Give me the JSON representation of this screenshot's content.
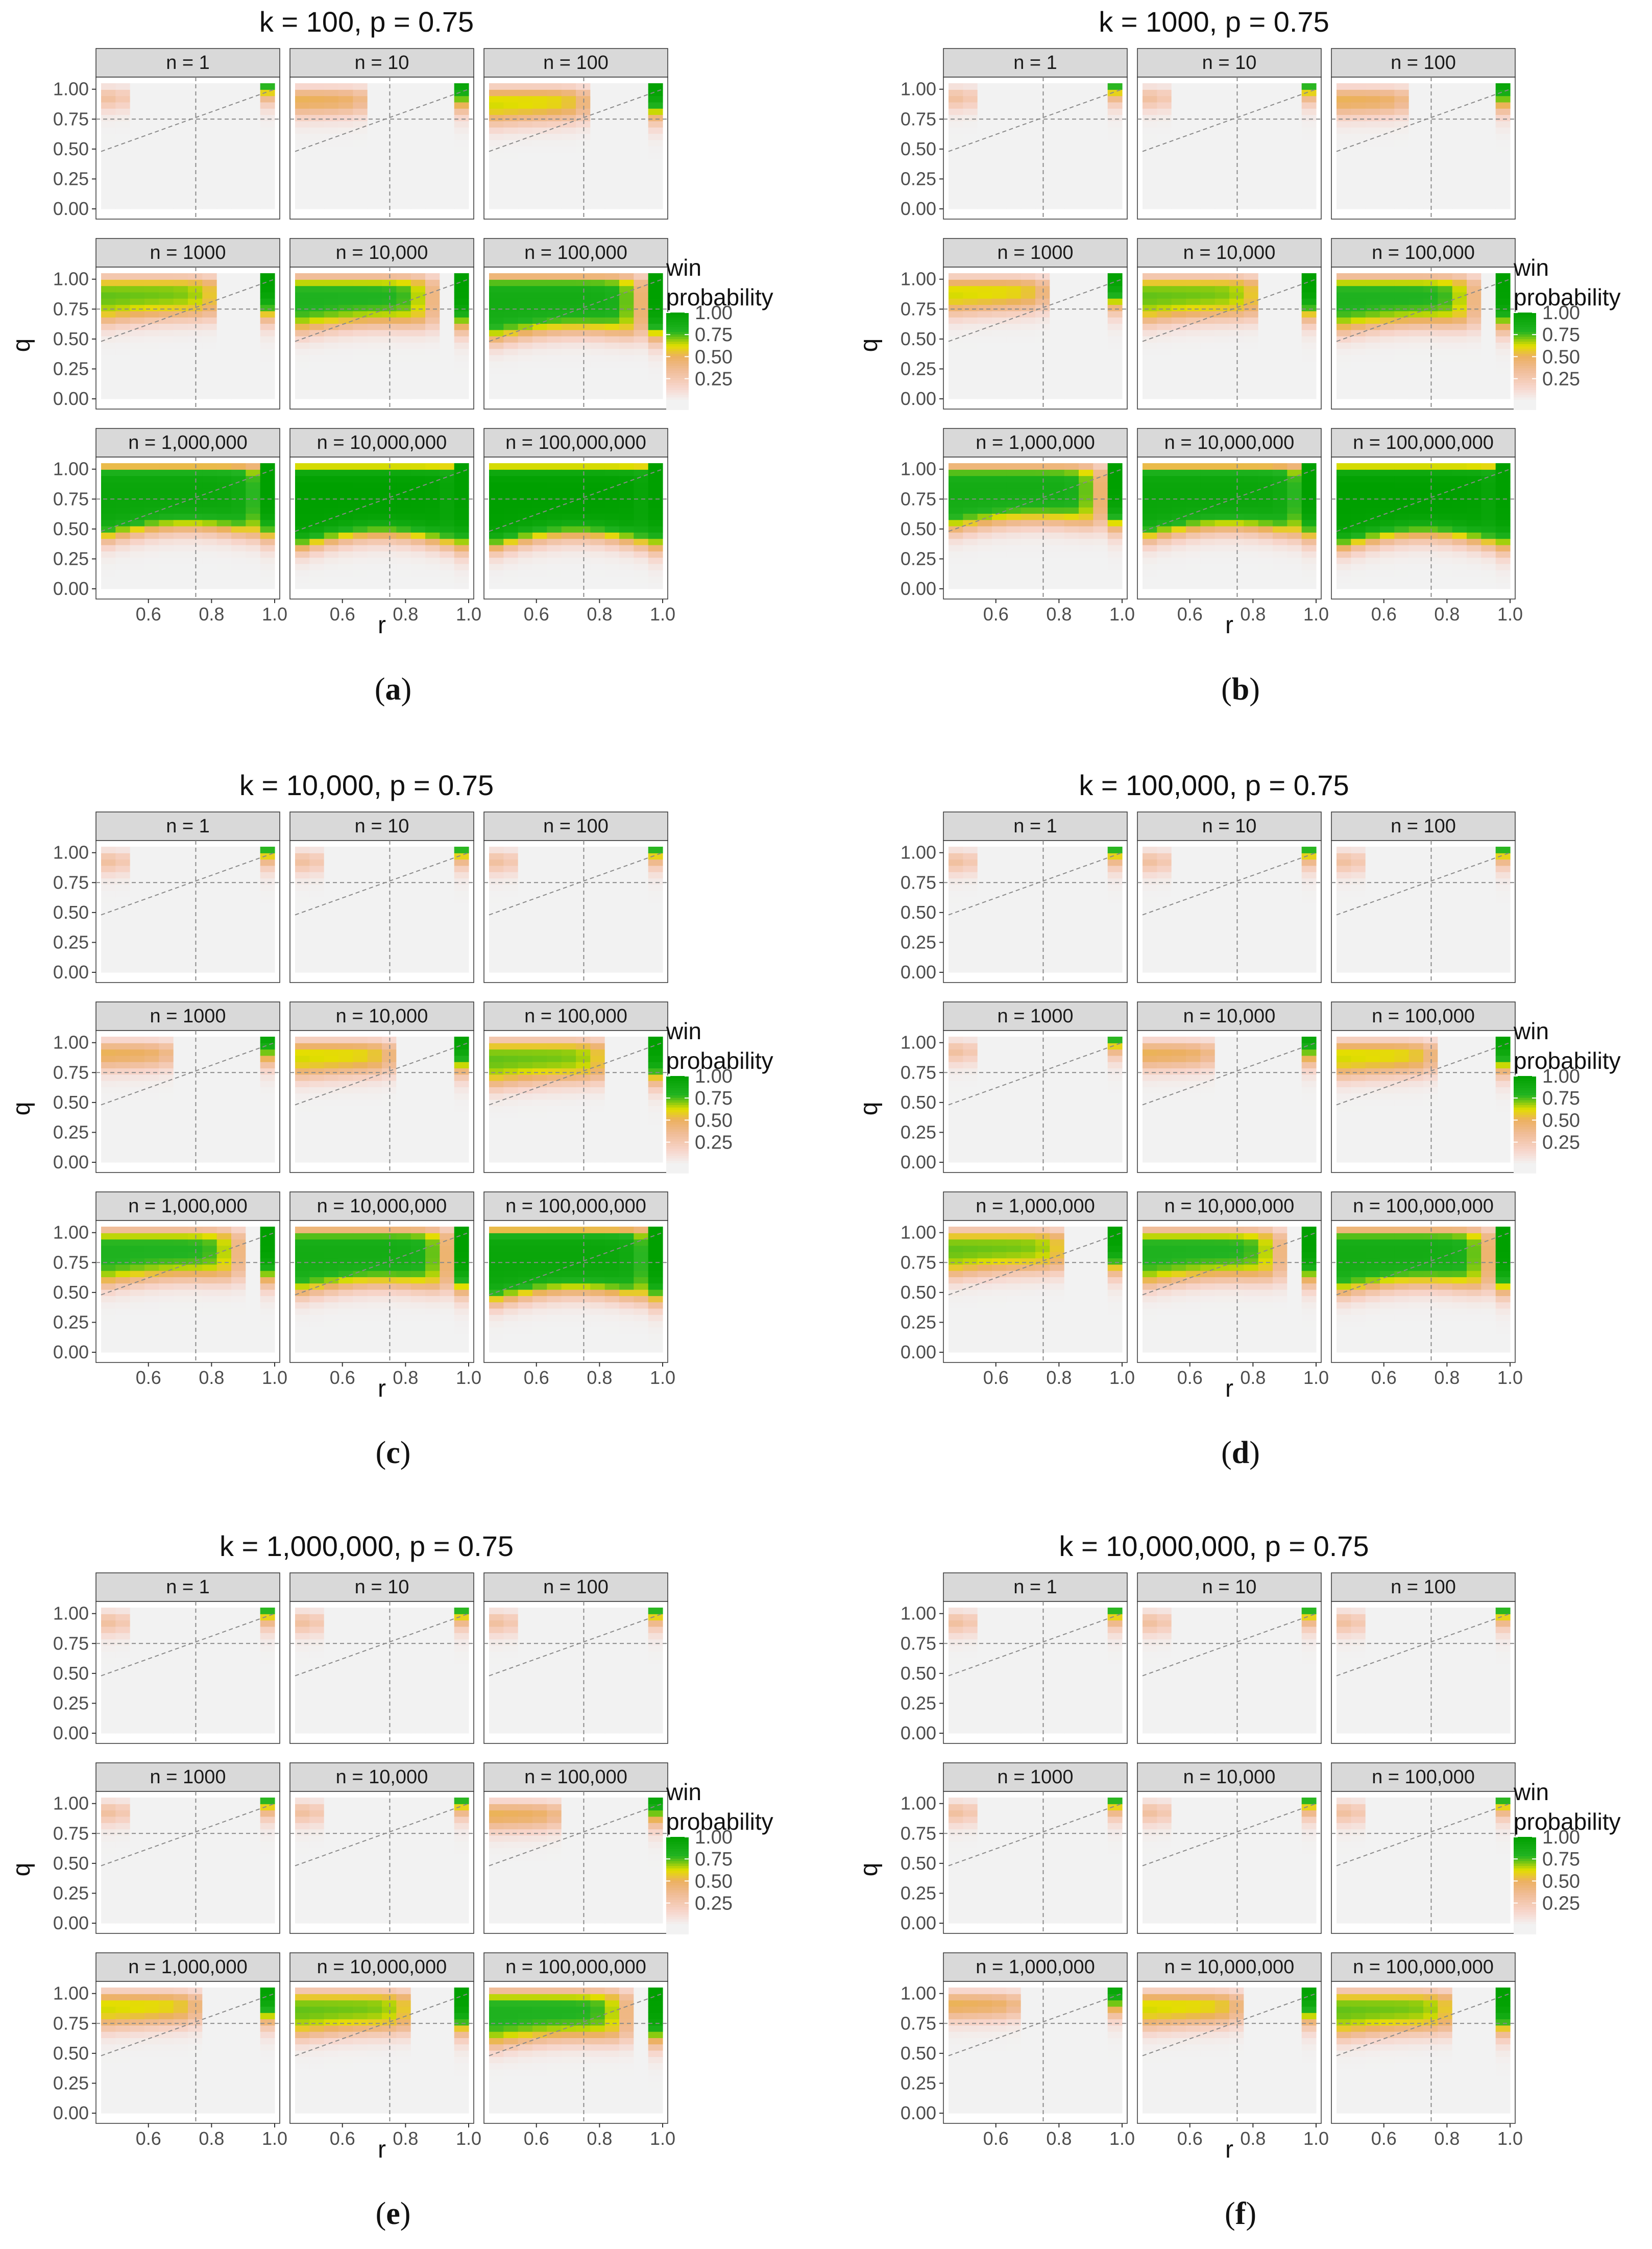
{
  "chart_data": {
    "type": "heatmap",
    "p": 0.75,
    "x_axis": {
      "label": "r",
      "ticks": [
        0.6,
        0.8,
        1.0
      ],
      "tick_labels": [
        "0.6",
        "0.8",
        "1.0"
      ],
      "range": [
        0.45,
        1.0
      ]
    },
    "y_axis": {
      "label": "q",
      "ticks": [
        0.0,
        0.25,
        0.5,
        0.75,
        1.0
      ],
      "tick_labels": [
        "0.00",
        "0.25",
        "0.50",
        "0.75",
        "1.00"
      ],
      "range": [
        0.0,
        1.05
      ]
    },
    "legend": {
      "title_line1": "win",
      "title_line2": "probability",
      "ticks": [
        1.0,
        0.75,
        0.5,
        0.25
      ],
      "tick_labels": [
        "1.00",
        "0.75",
        "0.50",
        "0.25"
      ],
      "colors": [
        "#f2f2f2",
        "#f7cab8",
        "#eeb060",
        "#e3e000",
        "#22b422",
        "#00a000"
      ]
    },
    "reference_lines": {
      "dashed_vertical_r": 0.75,
      "dashed_horizontal_q": 0.75,
      "diagonal_from": [
        0.45,
        0.48
      ],
      "diagonal_to": [
        1.0,
        1.0
      ]
    },
    "panel_labels": [
      "n = 1",
      "n = 10",
      "n = 100",
      "n = 1000",
      "n = 10,000",
      "n = 100,000",
      "n = 1,000,000",
      "n = 10,000,000",
      "n = 100,000,000"
    ],
    "n_values": [
      1,
      10,
      100,
      1000,
      10000,
      100000,
      1000000,
      10000000,
      100000000
    ],
    "subfigures": [
      {
        "caption": "a",
        "title": "k = 100, p = 0.75",
        "k": 100
      },
      {
        "caption": "b",
        "title": "k = 1000, p = 0.75",
        "k": 1000
      },
      {
        "caption": "c",
        "title": "k = 10,000, p = 0.75",
        "k": 10000
      },
      {
        "caption": "d",
        "title": "k = 100,000, p = 0.75",
        "k": 100000
      },
      {
        "caption": "e",
        "title": "k = 1,000,000, p = 0.75",
        "k": 1000000
      },
      {
        "caption": "f",
        "title": "k = 10,000,000, p = 0.75",
        "k": 10000000
      }
    ]
  }
}
